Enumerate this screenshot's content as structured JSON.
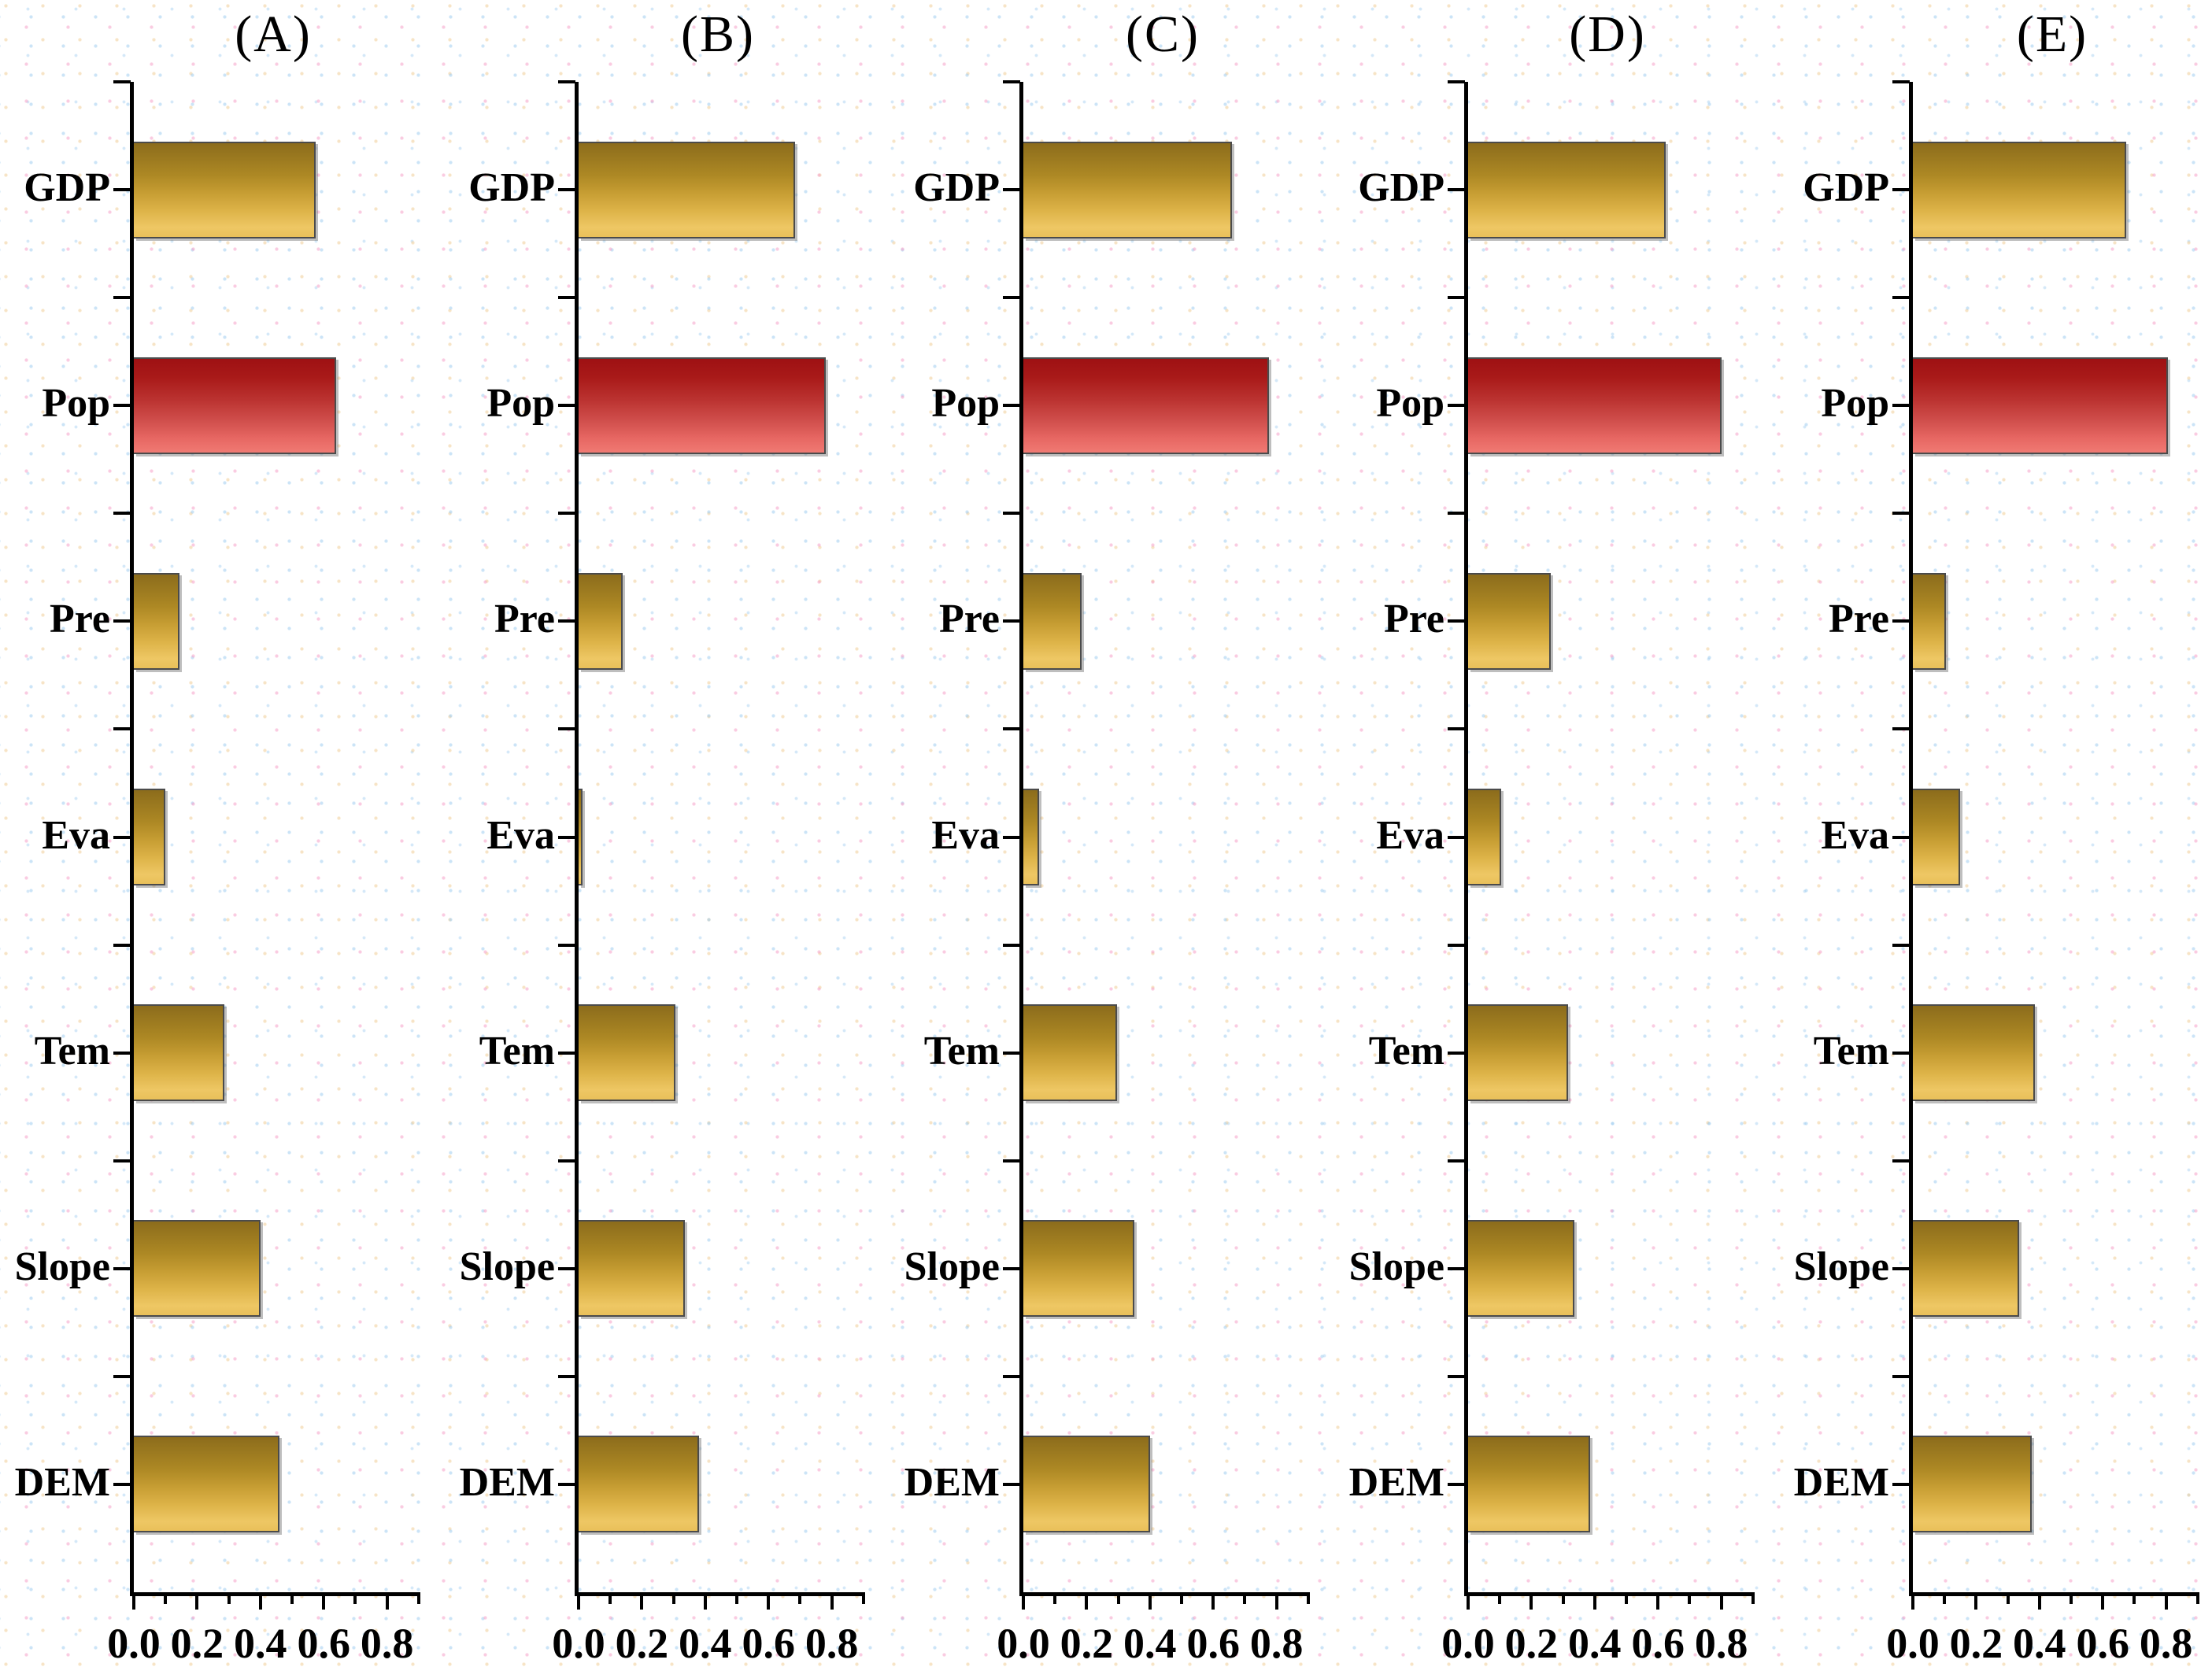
{
  "figure": {
    "panel_titles": [
      "(A)",
      "(B)",
      "(C)",
      "(D)",
      "(E)"
    ]
  },
  "categories": [
    "GDP",
    "Pop",
    "Pre",
    "Eva",
    "Tem",
    "Slope",
    "DEM"
  ],
  "x_tick_labels": [
    "0.0",
    "0.2",
    "0.4",
    "0.6",
    "0.8"
  ],
  "colors": {
    "axis": "#000000",
    "text": "#000000",
    "bar_border": "#4b4b4b",
    "gold_top": "#8c6c1c",
    "gold_bottom": "#eec764",
    "pop_red_top": "#9e1113",
    "pop_red_bottom": "#f07a73"
  },
  "chart_data": [
    {
      "type": "bar",
      "orientation": "horizontal",
      "title": "(A)",
      "categories": [
        "GDP",
        "Pop",
        "Pre",
        "Eva",
        "Tem",
        "Slope",
        "DEM"
      ],
      "values": [
        0.575,
        0.64,
        0.145,
        0.1,
        0.285,
        0.4,
        0.46
      ],
      "xlim": [
        0,
        0.9
      ],
      "x_tick_values": [
        0,
        0.2,
        0.4,
        0.6,
        0.8
      ],
      "minor_tick_step": 0.1,
      "grid": false,
      "highlight_category": "Pop"
    },
    {
      "type": "bar",
      "orientation": "horizontal",
      "title": "(B)",
      "categories": [
        "GDP",
        "Pop",
        "Pre",
        "Eva",
        "Tem",
        "Slope",
        "DEM"
      ],
      "values": [
        0.685,
        0.78,
        0.14,
        0.012,
        0.305,
        0.335,
        0.38
      ],
      "xlim": [
        0,
        0.9
      ],
      "x_tick_values": [
        0,
        0.2,
        0.4,
        0.6,
        0.8
      ],
      "minor_tick_step": 0.1,
      "grid": false,
      "highlight_category": "Pop"
    },
    {
      "type": "bar",
      "orientation": "horizontal",
      "title": "(C)",
      "categories": [
        "GDP",
        "Pop",
        "Pre",
        "Eva",
        "Tem",
        "Slope",
        "DEM"
      ],
      "values": [
        0.66,
        0.775,
        0.185,
        0.05,
        0.295,
        0.35,
        0.4
      ],
      "xlim": [
        0,
        0.9
      ],
      "x_tick_values": [
        0,
        0.2,
        0.4,
        0.6,
        0.8
      ],
      "minor_tick_step": 0.1,
      "grid": false,
      "highlight_category": "Pop"
    },
    {
      "type": "bar",
      "orientation": "horizontal",
      "title": "(D)",
      "categories": [
        "GDP",
        "Pop",
        "Pre",
        "Eva",
        "Tem",
        "Slope",
        "DEM"
      ],
      "values": [
        0.625,
        0.8,
        0.26,
        0.105,
        0.315,
        0.335,
        0.385
      ],
      "xlim": [
        0,
        0.9
      ],
      "x_tick_values": [
        0,
        0.2,
        0.4,
        0.6,
        0.8
      ],
      "minor_tick_step": 0.1,
      "grid": false,
      "highlight_category": "Pop"
    },
    {
      "type": "bar",
      "orientation": "horizontal",
      "title": "(E)",
      "categories": [
        "GDP",
        "Pop",
        "Pre",
        "Eva",
        "Tem",
        "Slope",
        "DEM"
      ],
      "values": [
        0.675,
        0.805,
        0.105,
        0.15,
        0.385,
        0.335,
        0.375
      ],
      "xlim": [
        0,
        0.9
      ],
      "x_tick_values": [
        0,
        0.2,
        0.4,
        0.6,
        0.8
      ],
      "minor_tick_step": 0.1,
      "grid": false,
      "highlight_category": "Pop"
    }
  ]
}
